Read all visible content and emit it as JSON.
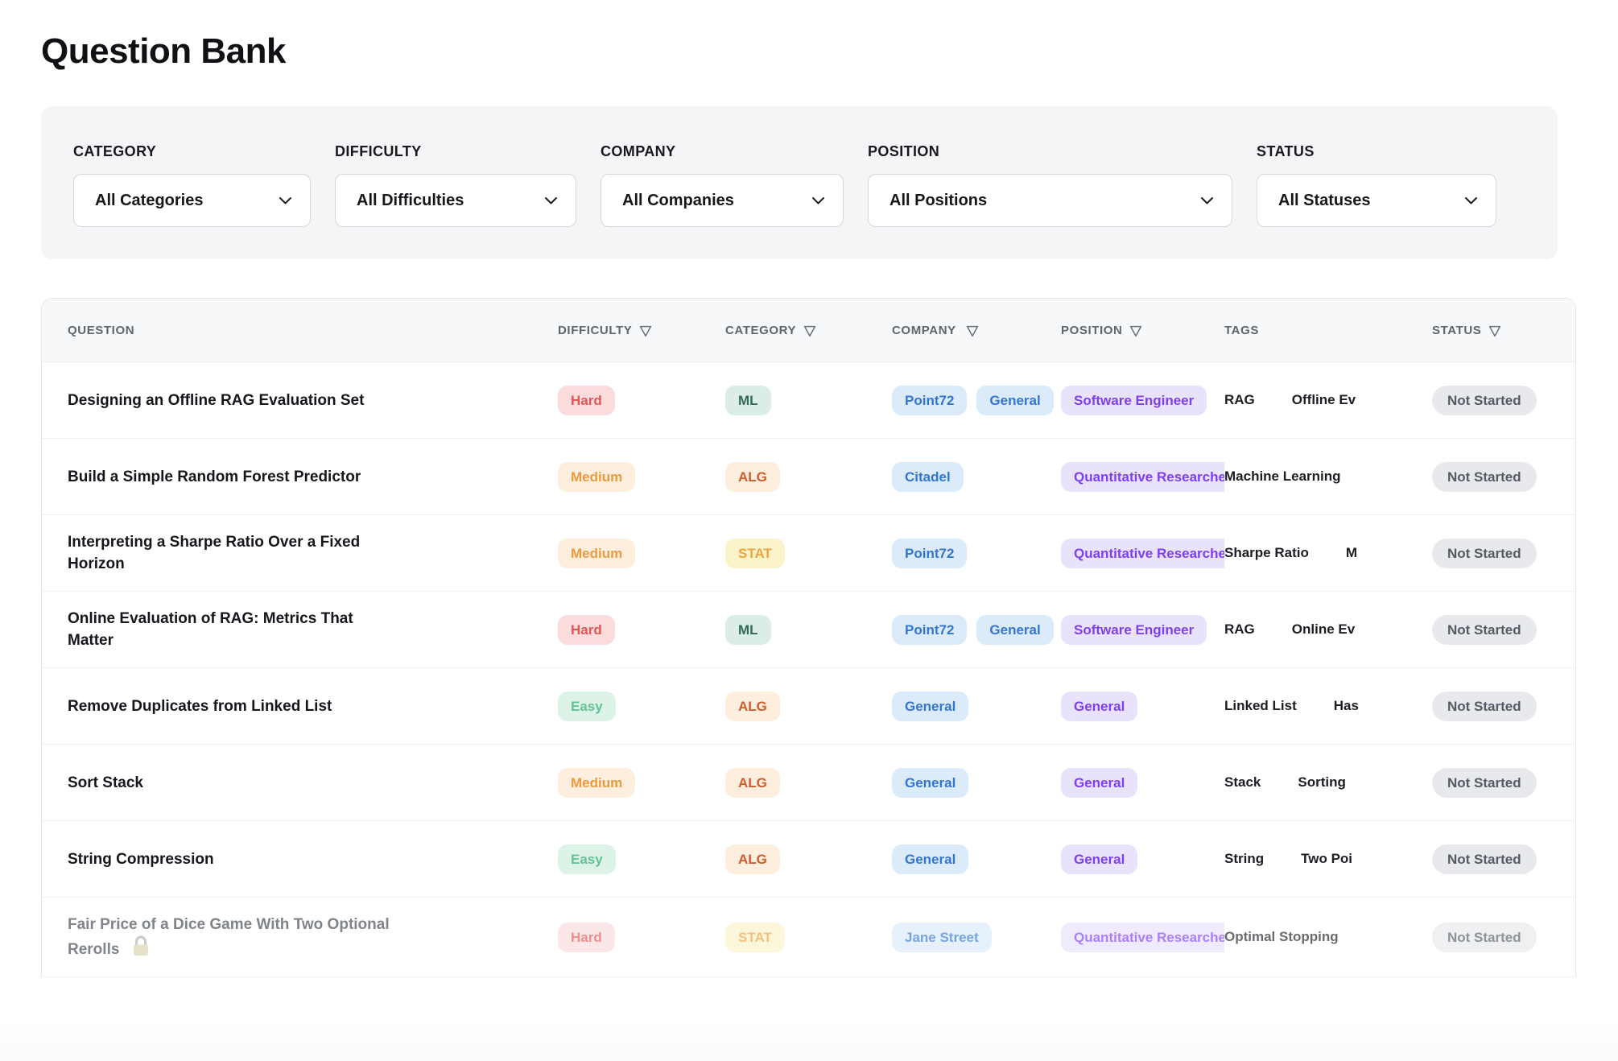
{
  "page": {
    "title": "Question Bank"
  },
  "filters": [
    {
      "id": "category",
      "label": "CATEGORY",
      "value": "All Categories"
    },
    {
      "id": "difficulty",
      "label": "DIFFICULTY",
      "value": "All Difficulties"
    },
    {
      "id": "company",
      "label": "COMPANY",
      "value": "All Companies"
    },
    {
      "id": "position",
      "label": "POSITION",
      "value": "All Positions"
    },
    {
      "id": "status",
      "label": "STATUS",
      "value": "All Statuses"
    }
  ],
  "table": {
    "columns": [
      {
        "key": "question",
        "label": "QUESTION",
        "sortable": false
      },
      {
        "key": "difficulty",
        "label": "DIFFICULTY",
        "sortable": true
      },
      {
        "key": "category",
        "label": "CATEGORY",
        "sortable": true
      },
      {
        "key": "company",
        "label": "COMPANY",
        "sortable": true
      },
      {
        "key": "position",
        "label": "POSITION",
        "sortable": true
      },
      {
        "key": "tags",
        "label": "TAGS",
        "sortable": false
      },
      {
        "key": "status",
        "label": "STATUS",
        "sortable": true
      }
    ],
    "rows": [
      {
        "question": "Designing an Offline RAG Evaluation Set",
        "difficulty": "Hard",
        "category": "ML",
        "companies": [
          "Point72",
          "General"
        ],
        "position": "Software Engineer",
        "tags": [
          "RAG",
          "Offline Ev"
        ],
        "status": "Not Started",
        "locked": false
      },
      {
        "question": "Build a Simple Random Forest Predictor",
        "difficulty": "Medium",
        "category": "ALG",
        "companies": [
          "Citadel"
        ],
        "position": "Quantitative Researcher",
        "tags": [
          "Machine Learning"
        ],
        "status": "Not Started",
        "locked": false
      },
      {
        "question": "Interpreting a Sharpe Ratio Over a Fixed Horizon",
        "difficulty": "Medium",
        "category": "STAT",
        "companies": [
          "Point72"
        ],
        "position": "Quantitative Researcher",
        "tags": [
          "Sharpe Ratio",
          "M"
        ],
        "status": "Not Started",
        "locked": false
      },
      {
        "question": "Online Evaluation of RAG: Metrics That Matter",
        "difficulty": "Hard",
        "category": "ML",
        "companies": [
          "Point72",
          "General"
        ],
        "position": "Software Engineer",
        "tags": [
          "RAG",
          "Online Ev"
        ],
        "status": "Not Started",
        "locked": false
      },
      {
        "question": "Remove Duplicates from Linked List",
        "difficulty": "Easy",
        "category": "ALG",
        "companies": [
          "General"
        ],
        "position": "General",
        "tags": [
          "Linked List",
          "Has"
        ],
        "status": "Not Started",
        "locked": false
      },
      {
        "question": "Sort Stack",
        "difficulty": "Medium",
        "category": "ALG",
        "companies": [
          "General"
        ],
        "position": "General",
        "tags": [
          "Stack",
          "Sorting"
        ],
        "status": "Not Started",
        "locked": false
      },
      {
        "question": "String Compression",
        "difficulty": "Easy",
        "category": "ALG",
        "companies": [
          "General"
        ],
        "position": "General",
        "tags": [
          "String",
          "Two Poi"
        ],
        "status": "Not Started",
        "locked": false
      },
      {
        "question": "Fair Price of a Dice Game With Two Optional Rerolls",
        "difficulty": "Hard",
        "category": "STAT",
        "companies": [
          "Jane Street"
        ],
        "position": "Quantitative Researcher",
        "tags": [
          "Optimal Stopping"
        ],
        "status": "Not Started",
        "locked": true
      }
    ]
  },
  "palette": {
    "difficulty": {
      "Hard": {
        "bg": "#f9dcdb",
        "fg": "#e05555"
      },
      "Medium": {
        "bg": "#fdeede",
        "fg": "#eb9b3f"
      },
      "Easy": {
        "bg": "#def3e8",
        "fg": "#62c392"
      }
    },
    "category": {
      "ML": {
        "bg": "#dcede8",
        "fg": "#2f6b55"
      },
      "ALG": {
        "bg": "#fdeedd",
        "fg": "#cf5c2e"
      },
      "STAT": {
        "bg": "#fbf3c9",
        "fg": "#f0a33d"
      }
    },
    "company": {
      "bg": "#dcebfa",
      "fg": "#3276d2"
    },
    "position": {
      "bg": "#e9e2fb",
      "fg": "#7e3ff2"
    },
    "status": {
      "Not Started": {
        "bg": "#e8e9ec",
        "fg": "#555b64"
      }
    }
  }
}
